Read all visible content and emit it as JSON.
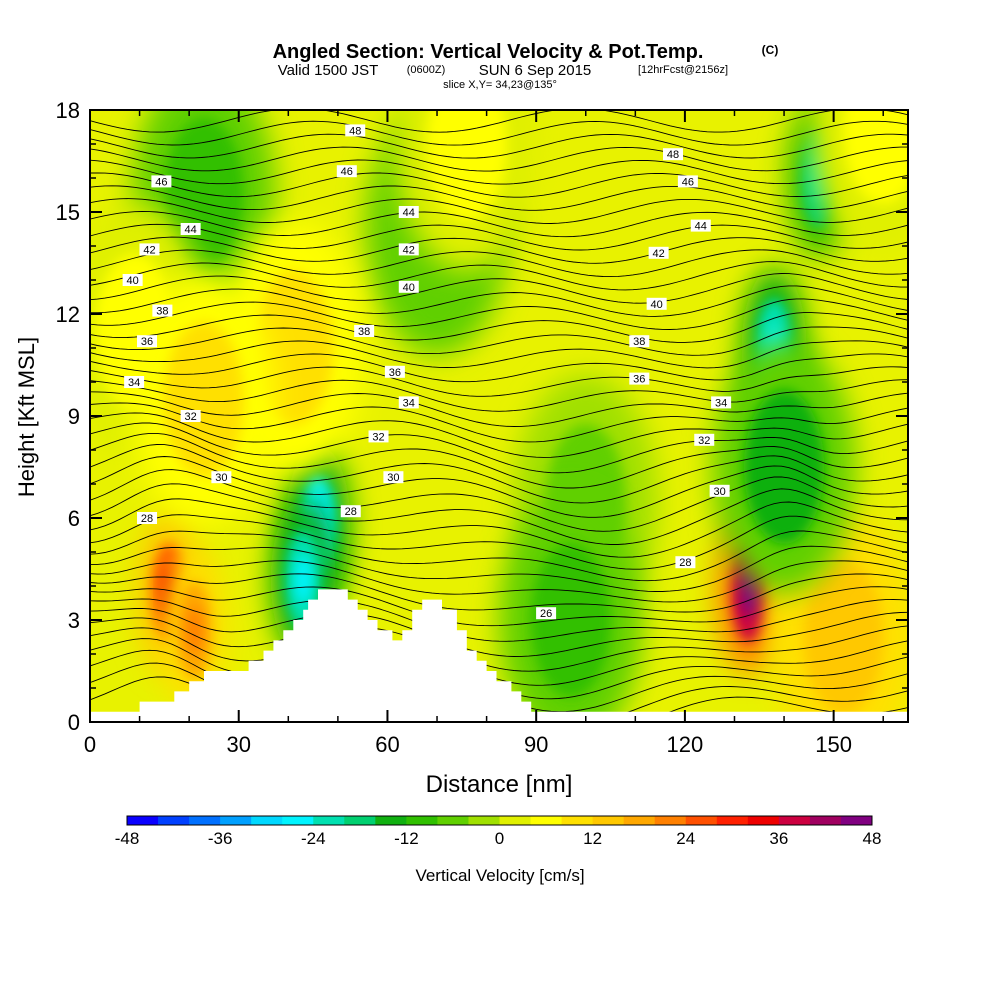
{
  "title": {
    "main": "Angled Section: Vertical Velocity & Pot.Temp.",
    "main_unit": "(C)",
    "valid_a": "Valid 1500 JST",
    "valid_b": "(0600Z)",
    "valid_c": "SUN 6 Sep 2015",
    "valid_d": "[12hrFcst@2156z]",
    "slice": "slice X,Y= 34,23@135°"
  },
  "chart_data": {
    "type": "heatmap",
    "xlabel": "Distance [nm]",
    "ylabel": "Height [Kft MSL]",
    "xlim": [
      0,
      165
    ],
    "ylim": [
      0,
      18
    ],
    "x_ticks": [
      0,
      30,
      60,
      90,
      120,
      150
    ],
    "y_ticks": [
      0,
      3,
      6,
      9,
      12,
      15,
      18
    ],
    "colorbar": {
      "label": "Vertical Velocity [cm/s]",
      "min": -48,
      "max": 48,
      "step": 4,
      "tick_values": [
        -48,
        -36,
        -24,
        -12,
        0,
        12,
        24,
        36,
        48
      ],
      "colors": [
        "#0a00ff",
        "#0040ff",
        "#0070ff",
        "#00a0ff",
        "#00d8ff",
        "#00f4ff",
        "#00e0b0",
        "#00d070",
        "#10b010",
        "#30c000",
        "#60d000",
        "#a0e000",
        "#e0f000",
        "#ffff00",
        "#ffe000",
        "#ffc800",
        "#ffa800",
        "#ff8000",
        "#ff5000",
        "#ff2000",
        "#ee0000",
        "#cc0040",
        "#a00060",
        "#800080"
      ]
    },
    "terrain_profile": [
      [
        0,
        0.3
      ],
      [
        10,
        0.3
      ],
      [
        10,
        0.6
      ],
      [
        17,
        0.6
      ],
      [
        17,
        0.9
      ],
      [
        20,
        0.9
      ],
      [
        20,
        1.2
      ],
      [
        23,
        1.2
      ],
      [
        23,
        1.5
      ],
      [
        32,
        1.5
      ],
      [
        32,
        1.8
      ],
      [
        35,
        1.8
      ],
      [
        35,
        2.1
      ],
      [
        37,
        2.1
      ],
      [
        37,
        2.4
      ],
      [
        39,
        2.4
      ],
      [
        39,
        2.7
      ],
      [
        41,
        2.7
      ],
      [
        41,
        3.0
      ],
      [
        43,
        3.0
      ],
      [
        43,
        3.3
      ],
      [
        44,
        3.3
      ],
      [
        44,
        3.6
      ],
      [
        46,
        3.6
      ],
      [
        46,
        3.9
      ],
      [
        52,
        3.9
      ],
      [
        52,
        3.6
      ],
      [
        54,
        3.6
      ],
      [
        54,
        3.3
      ],
      [
        56,
        3.3
      ],
      [
        56,
        3.0
      ],
      [
        58,
        3.0
      ],
      [
        58,
        2.7
      ],
      [
        61,
        2.7
      ],
      [
        61,
        2.4
      ],
      [
        63,
        2.4
      ],
      [
        63,
        2.7
      ],
      [
        65,
        2.7
      ],
      [
        65,
        3.3
      ],
      [
        67,
        3.3
      ],
      [
        67,
        3.6
      ],
      [
        71,
        3.6
      ],
      [
        71,
        3.3
      ],
      [
        74,
        3.3
      ],
      [
        74,
        2.7
      ],
      [
        76,
        2.7
      ],
      [
        76,
        2.1
      ],
      [
        78,
        2.1
      ],
      [
        78,
        1.8
      ],
      [
        80,
        1.8
      ],
      [
        80,
        1.5
      ],
      [
        82,
        1.5
      ],
      [
        82,
        1.2
      ],
      [
        85,
        1.2
      ],
      [
        85,
        0.9
      ],
      [
        87,
        0.9
      ],
      [
        87,
        0.6
      ],
      [
        89,
        0.6
      ],
      [
        89,
        0.3
      ],
      [
        165,
        0.3
      ]
    ],
    "velocity_features": [
      {
        "x": 16,
        "y": 3.8,
        "value": 34
      },
      {
        "x": 21,
        "y": 2.7,
        "value": 20
      },
      {
        "x": 46,
        "y": 5.8,
        "value": -32
      },
      {
        "x": 43,
        "y": 4.2,
        "value": -28
      },
      {
        "x": 133,
        "y": 3.8,
        "value": 46
      },
      {
        "x": 146,
        "y": 3.8,
        "value": 22
      },
      {
        "x": 152,
        "y": 2.5,
        "value": 18
      },
      {
        "x": 138,
        "y": 11.0,
        "value": -28
      },
      {
        "x": 140,
        "y": 7.5,
        "value": -16
      },
      {
        "x": 100,
        "y": 6.5,
        "value": -8
      },
      {
        "x": 97,
        "y": 3.0,
        "value": -12
      },
      {
        "x": 23,
        "y": 15.5,
        "value": -14
      },
      {
        "x": 70,
        "y": 14.5,
        "value": -10
      },
      {
        "x": 147,
        "y": 16.0,
        "value": -22
      },
      {
        "x": 41,
        "y": 11.0,
        "value": 10
      },
      {
        "x": 76,
        "y": 17.0,
        "value": 8
      },
      {
        "x": 9,
        "y": 11.5,
        "value": 8
      },
      {
        "x": 23,
        "y": 9.5,
        "value": 10
      },
      {
        "x": 160,
        "y": 17.5,
        "value": 8
      }
    ],
    "theta_contour_levels": [
      26,
      28,
      30,
      32,
      34,
      36,
      38,
      40,
      42,
      44,
      46,
      48
    ],
    "contour_labels": [
      {
        "text": "48",
        "x": 53.5,
        "y": 17.4
      },
      {
        "text": "48",
        "x": 117.6,
        "y": 16.7
      },
      {
        "text": "46",
        "x": 51.8,
        "y": 16.2
      },
      {
        "text": "46",
        "x": 14.4,
        "y": 15.9
      },
      {
        "text": "46",
        "x": 120.6,
        "y": 15.9
      },
      {
        "text": "44",
        "x": 64.3,
        "y": 15.0
      },
      {
        "text": "44",
        "x": 20.3,
        "y": 14.5
      },
      {
        "text": "44",
        "x": 123.2,
        "y": 14.6
      },
      {
        "text": "42",
        "x": 12.0,
        "y": 13.9
      },
      {
        "text": "42",
        "x": 64.3,
        "y": 13.9
      },
      {
        "text": "42",
        "x": 114.7,
        "y": 13.8
      },
      {
        "text": "40",
        "x": 8.6,
        "y": 13.0
      },
      {
        "text": "40",
        "x": 64.3,
        "y": 12.8
      },
      {
        "text": "40",
        "x": 114.3,
        "y": 12.3
      },
      {
        "text": "38",
        "x": 14.6,
        "y": 12.1
      },
      {
        "text": "38",
        "x": 55.3,
        "y": 11.5
      },
      {
        "text": "38",
        "x": 110.8,
        "y": 11.2
      },
      {
        "text": "36",
        "x": 11.5,
        "y": 11.2
      },
      {
        "text": "36",
        "x": 61.5,
        "y": 10.3
      },
      {
        "text": "36",
        "x": 110.8,
        "y": 10.1
      },
      {
        "text": "34",
        "x": 8.9,
        "y": 10.0
      },
      {
        "text": "34",
        "x": 64.3,
        "y": 9.4
      },
      {
        "text": "34",
        "x": 127.3,
        "y": 9.4
      },
      {
        "text": "32",
        "x": 20.3,
        "y": 9.0
      },
      {
        "text": "32",
        "x": 58.2,
        "y": 8.4
      },
      {
        "text": "32",
        "x": 123.9,
        "y": 8.3
      },
      {
        "text": "30",
        "x": 26.5,
        "y": 7.2
      },
      {
        "text": "30",
        "x": 61.2,
        "y": 7.2
      },
      {
        "text": "30",
        "x": 127.0,
        "y": 6.8
      },
      {
        "text": "28",
        "x": 11.5,
        "y": 6.0
      },
      {
        "text": "28",
        "x": 52.6,
        "y": 6.2
      },
      {
        "text": "28",
        "x": 120.1,
        "y": 4.7
      },
      {
        "text": "26",
        "x": 92.0,
        "y": 3.2
      }
    ]
  }
}
